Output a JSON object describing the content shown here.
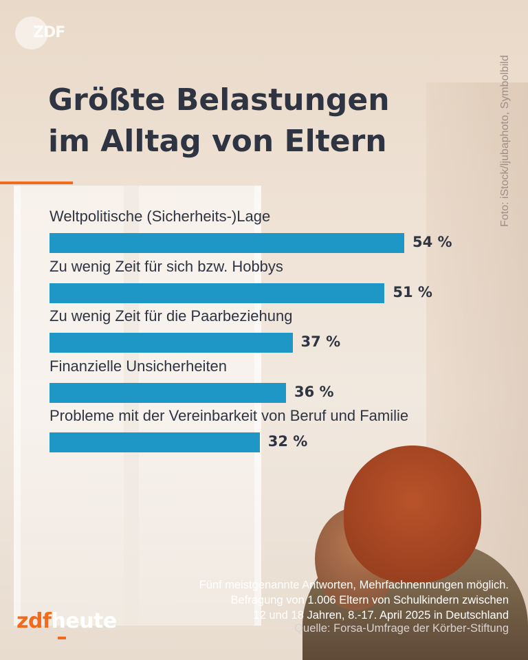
{
  "header": {
    "logo_text": "ZDF",
    "title_line1": "Größte Belastungen",
    "title_line2": "im Alltag von Eltern",
    "photo_credit": "Foto: iStock/ljubaphoto, Symbolbild"
  },
  "chart_data": {
    "type": "bar",
    "orientation": "horizontal",
    "title": "Größte Belastungen im Alltag von Eltern",
    "categories": [
      "Weltpolitische (Sicherheits-)Lage",
      "Zu wenig Zeit für sich bzw. Hobbys",
      "Zu wenig Zeit für die Paarbeziehung",
      "Finanzielle Unsicherheiten",
      "Probleme mit der Vereinbarkeit von Beruf und Familie"
    ],
    "values": [
      54,
      51,
      37,
      36,
      32
    ],
    "value_labels": [
      "54 %",
      "51 %",
      "37 %",
      "36 %",
      "32 %"
    ],
    "unit": "%",
    "xlim": [
      0,
      54
    ],
    "grid": false,
    "bar_color": "#1f97c6"
  },
  "footer": {
    "note_line1": "Fünf meistgenannte Antworten, Mehrfachnennungen möglich.",
    "note_line2": "Befragung von 1.006 Eltern von Schulkindern zwischen",
    "note_line3": "12 und 18 Jahren, 8.-17. April 2025 in Deutschland",
    "source": "Quelle: Forsa-Umfrage der Körber-Stiftung",
    "brand_zdf": "zdf",
    "brand_heute": "heute"
  },
  "colors": {
    "accent": "#f26b1d",
    "bar": "#1f97c6",
    "text": "#2e3442"
  }
}
